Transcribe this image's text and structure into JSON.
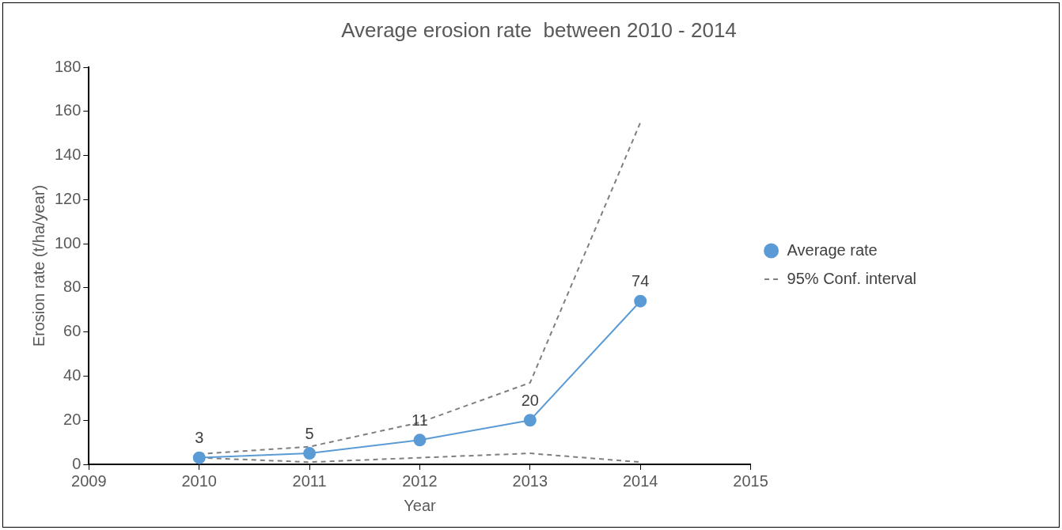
{
  "chart_data": {
    "type": "line",
    "title": "Average erosion rate  between 2010 - 2014",
    "xlabel": "Year",
    "ylabel": "Erosion rate (t/ha/year)",
    "x": [
      2010,
      2011,
      2012,
      2013,
      2014
    ],
    "xlim": [
      2009,
      2015
    ],
    "xticks": [
      2009,
      2010,
      2011,
      2012,
      2013,
      2014,
      2015
    ],
    "ylim": [
      0,
      180
    ],
    "yticks": [
      0,
      20,
      40,
      60,
      80,
      100,
      120,
      140,
      160,
      180
    ],
    "grid": false,
    "legend": "right",
    "series": [
      {
        "name": "Average rate",
        "color": "#5b9bd5",
        "values": [
          3,
          5,
          11,
          20,
          74
        ],
        "marker": "circle",
        "line_style": "solid",
        "data_labels": true
      },
      {
        "name": "95% Conf. interval",
        "color": "#7f7f7f",
        "values": [
          4.7,
          8,
          19,
          37,
          155
        ],
        "marker": "none",
        "line_style": "dashed"
      },
      {
        "color": "#7f7f7f",
        "values": [
          3,
          1,
          3,
          5,
          1
        ],
        "marker": "none",
        "line_style": "dashed"
      }
    ]
  }
}
